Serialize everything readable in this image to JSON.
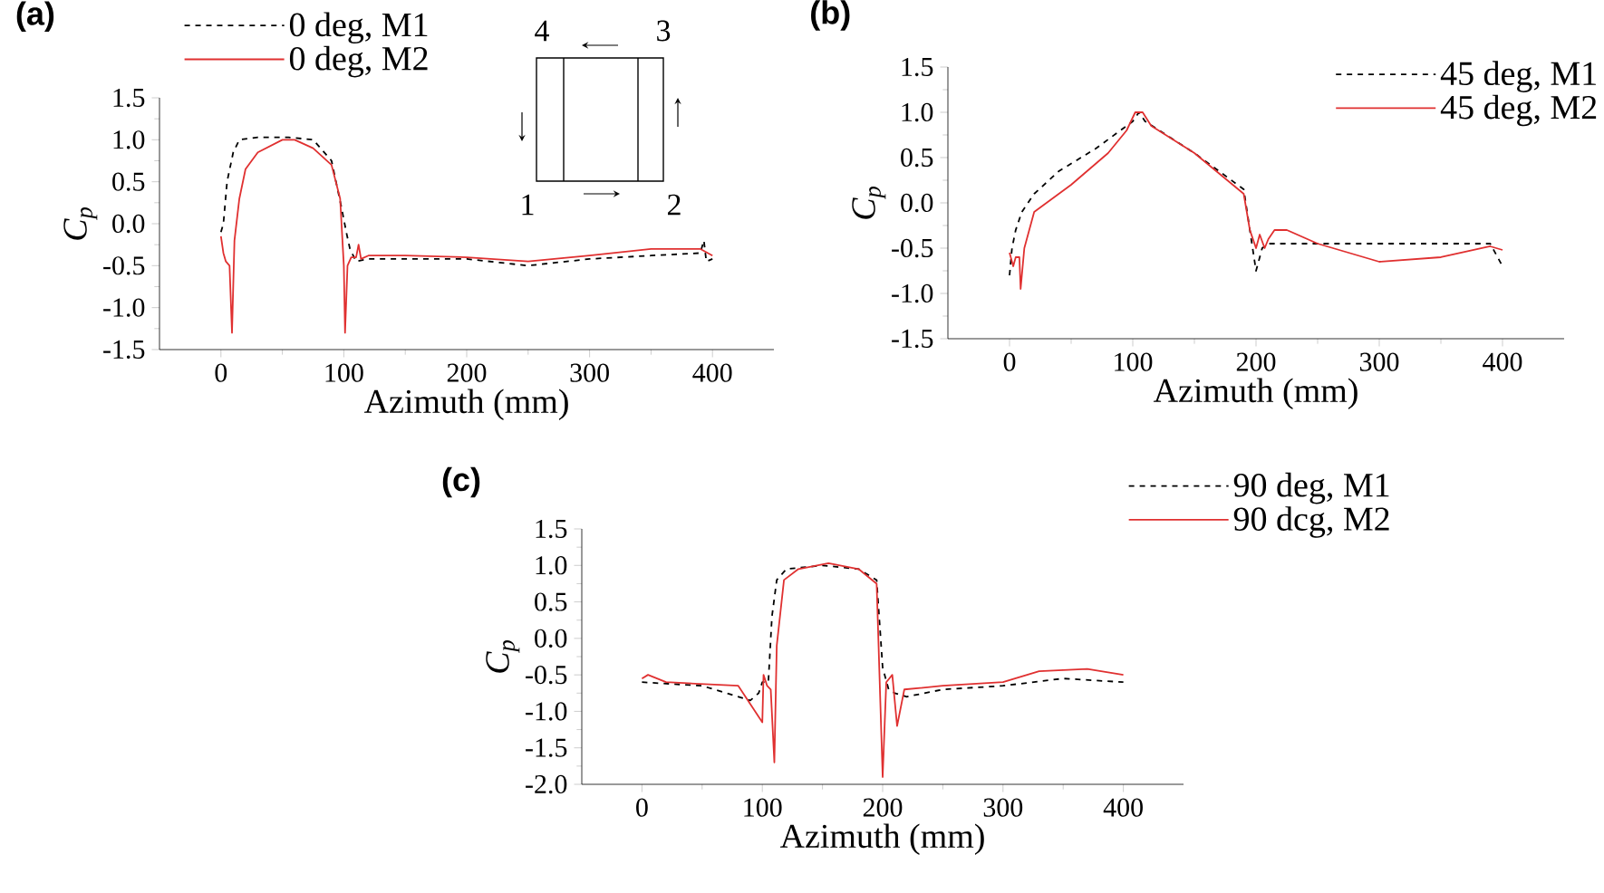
{
  "chart_data": [
    {
      "type": "line",
      "title": "(a)",
      "xlabel": "Azimuth (mm)",
      "ylabel": "C$_{p}$",
      "xlim": [
        -50,
        450
      ],
      "ylim": [
        -1.5,
        1.5
      ],
      "xticks": [
        0,
        100,
        200,
        300,
        400
      ],
      "yticks": [
        {
          "value": -1.5,
          "label": "-1.5"
        },
        {
          "value": -1,
          "label": "-1.0"
        },
        {
          "value": -0.5,
          "label": "-0.5"
        },
        {
          "value": 0,
          "label": "0.0"
        },
        {
          "value": 0.5,
          "label": "0.5"
        },
        {
          "value": 1,
          "label": "1.0"
        },
        {
          "value": 1.5,
          "label": "1.5"
        }
      ],
      "legend": "top left",
      "annotations": [
        "1",
        "2",
        "3",
        "4"
      ],
      "series": [
        {
          "name": "0 deg, M1",
          "color": "#000000",
          "line_style": "dashed",
          "x": [
            0,
            2,
            5,
            10,
            15,
            30,
            55,
            75,
            90,
            98,
            102,
            105,
            110,
            120,
            150,
            200,
            250,
            300,
            350,
            390,
            393,
            395,
            400
          ],
          "values": [
            -0.1,
            0.0,
            0.5,
            0.85,
            1.0,
            1.03,
            1.03,
            1.0,
            0.75,
            0.2,
            -0.1,
            -0.3,
            -0.45,
            -0.42,
            -0.42,
            -0.42,
            -0.5,
            -0.42,
            -0.38,
            -0.35,
            -0.2,
            -0.45,
            -0.42
          ]
        },
        {
          "name": "0 deg, M2",
          "color": "#e03030",
          "line_style": "solid",
          "x": [
            0,
            2,
            4,
            7,
            9,
            11,
            15,
            20,
            30,
            50,
            60,
            75,
            90,
            97,
            100,
            101,
            103,
            106,
            110,
            112,
            114,
            120,
            150,
            200,
            250,
            300,
            350,
            390,
            400
          ],
          "values": [
            -0.15,
            -0.35,
            -0.45,
            -0.5,
            -1.3,
            -0.2,
            0.3,
            0.65,
            0.85,
            1.0,
            1.0,
            0.9,
            0.7,
            0.3,
            -0.5,
            -1.3,
            -0.5,
            -0.4,
            -0.4,
            -0.25,
            -0.42,
            -0.38,
            -0.38,
            -0.4,
            -0.45,
            -0.38,
            -0.3,
            -0.3,
            -0.38
          ]
        }
      ]
    },
    {
      "type": "line",
      "title": "(b)",
      "xlabel": "Azimuth (mm)",
      "ylabel": "C$_{p}$",
      "xlim": [
        -50,
        450
      ],
      "ylim": [
        -1.5,
        1.5
      ],
      "xticks": [
        0,
        100,
        200,
        300,
        400
      ],
      "yticks": [
        {
          "value": -1.5,
          "label": "-1.5"
        },
        {
          "value": -1,
          "label": "-1.0"
        },
        {
          "value": -0.5,
          "label": "-0.5"
        },
        {
          "value": 0,
          "label": "0.0"
        },
        {
          "value": 0.5,
          "label": "0.5"
        },
        {
          "value": 1,
          "label": "1.0"
        },
        {
          "value": 1.5,
          "label": "1.5"
        }
      ],
      "legend": "top right",
      "series": [
        {
          "name": "45 deg, M1",
          "color": "#000000",
          "line_style": "dashed",
          "x": [
            0,
            2,
            5,
            10,
            20,
            40,
            70,
            100,
            105,
            110,
            150,
            190,
            195,
            200,
            205,
            210,
            250,
            300,
            350,
            390,
            400
          ],
          "values": [
            -0.8,
            -0.5,
            -0.3,
            -0.1,
            0.1,
            0.35,
            0.6,
            0.9,
            1.0,
            0.9,
            0.55,
            0.15,
            -0.3,
            -0.75,
            -0.5,
            -0.45,
            -0.45,
            -0.45,
            -0.45,
            -0.45,
            -0.7
          ]
        },
        {
          "name": "45 deg, M2",
          "color": "#e03030",
          "line_style": "solid",
          "x": [
            0,
            3,
            5,
            8,
            9,
            12,
            20,
            50,
            80,
            95,
            102,
            108,
            115,
            150,
            190,
            195,
            200,
            203,
            207,
            210,
            215,
            225,
            250,
            300,
            350,
            390,
            400
          ],
          "values": [
            -0.55,
            -0.7,
            -0.6,
            -0.6,
            -0.95,
            -0.5,
            -0.1,
            0.2,
            0.55,
            0.8,
            1.0,
            1.0,
            0.85,
            0.55,
            0.1,
            -0.3,
            -0.5,
            -0.35,
            -0.5,
            -0.4,
            -0.3,
            -0.3,
            -0.45,
            -0.65,
            -0.6,
            -0.48,
            -0.52
          ]
        }
      ]
    },
    {
      "type": "line",
      "title": "(c)",
      "xlabel": "Azimuth (mm)",
      "ylabel": "C$_{p}$",
      "xlim": [
        -50,
        450
      ],
      "ylim": [
        -2,
        1.5
      ],
      "xticks": [
        0,
        100,
        200,
        300,
        400
      ],
      "yticks": [
        {
          "value": -2,
          "label": "-2.0"
        },
        {
          "value": -1.5,
          "label": "-1.5"
        },
        {
          "value": -1,
          "label": "-1.0"
        },
        {
          "value": -0.5,
          "label": "-0.5"
        },
        {
          "value": 0,
          "label": "0.0"
        },
        {
          "value": 0.5,
          "label": "0.5"
        },
        {
          "value": 1,
          "label": "1.0"
        },
        {
          "value": 1.5,
          "label": "1.5"
        }
      ],
      "legend": "top right",
      "series": [
        {
          "name": "90 deg, M1",
          "color": "#000000",
          "line_style": "dashed",
          "x": [
            0,
            50,
            90,
            97,
            100,
            105,
            108,
            112,
            120,
            150,
            180,
            195,
            200,
            205,
            210,
            220,
            250,
            300,
            350,
            400
          ],
          "values": [
            -0.6,
            -0.65,
            -0.85,
            -0.75,
            -0.6,
            -0.6,
            0.3,
            0.8,
            0.95,
            1.0,
            0.95,
            0.8,
            -0.4,
            -0.7,
            -0.75,
            -0.8,
            -0.7,
            -0.65,
            -0.55,
            -0.6
          ]
        },
        {
          "name": "90 dcg, M2",
          "color": "#e03030",
          "line_style": "solid",
          "x": [
            0,
            5,
            20,
            80,
            100,
            101,
            104,
            107,
            110,
            112,
            118,
            130,
            155,
            180,
            195,
            200,
            203,
            208,
            212,
            218,
            250,
            300,
            310,
            330,
            370,
            400
          ],
          "values": [
            -0.55,
            -0.5,
            -0.6,
            -0.65,
            -1.15,
            -0.5,
            -0.65,
            -0.7,
            -1.7,
            -0.1,
            0.8,
            0.95,
            1.03,
            0.95,
            0.75,
            -1.9,
            -0.6,
            -0.5,
            -1.2,
            -0.7,
            -0.65,
            -0.6,
            -0.55,
            -0.45,
            -0.42,
            -0.5
          ]
        }
      ]
    }
  ]
}
